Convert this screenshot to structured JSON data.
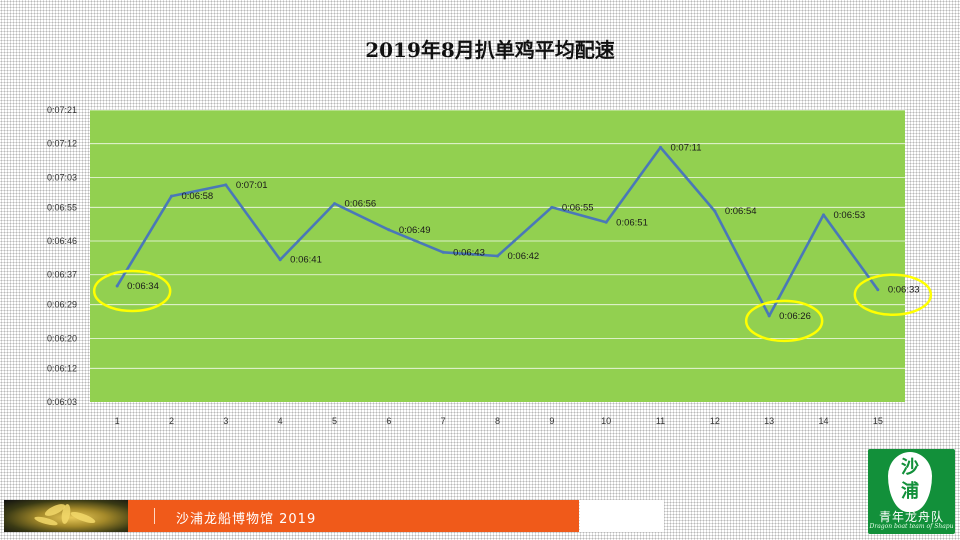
{
  "slide": {
    "title": "2019年8月扒单鸡平均配速",
    "footer_text": "沙浦龙船博物馆  2019",
    "logo_top_char": "沙",
    "logo_bottom_char": "浦",
    "logo_text": "青年龙舟队",
    "logo_subtext": "Dragon boat team of Shapu"
  },
  "colors": {
    "plot_background": "#92d050",
    "line": "#4a78b8",
    "highlight_ellipse": "#ffff00",
    "footer_bar": "#f05a1a",
    "logo_background": "#12903a"
  },
  "chart_data": {
    "type": "line",
    "title": "2019年8月扒单鸡平均配速",
    "categories": [
      "1",
      "2",
      "3",
      "4",
      "5",
      "6",
      "7",
      "8",
      "9",
      "10",
      "11",
      "12",
      "13",
      "14",
      "15"
    ],
    "values": [
      "0:06:34",
      "0:06:58",
      "0:07:01",
      "0:06:41",
      "0:06:56",
      "0:06:49",
      "0:06:43",
      "0:06:42",
      "0:06:55",
      "0:06:51",
      "0:07:11",
      "0:06:54",
      "0:06:26",
      "0:06:53",
      "0:06:33"
    ],
    "y_ticks": [
      "0:06:03",
      "0:06:12",
      "0:06:20",
      "0:06:29",
      "0:06:37",
      "0:06:46",
      "0:06:55",
      "0:07:03",
      "0:07:12",
      "0:07:21"
    ],
    "ylim": [
      "0:06:03",
      "0:07:21"
    ],
    "grid": true,
    "legend": "none",
    "highlighted_points": [
      "1",
      "13",
      "15"
    ]
  }
}
